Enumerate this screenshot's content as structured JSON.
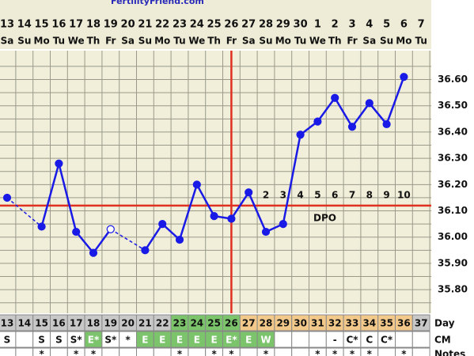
{
  "chart_data": {
    "type": "line",
    "title": "FertilityFriend.com",
    "categories": [
      "13",
      "14",
      "15",
      "16",
      "17",
      "18",
      "19",
      "20",
      "21",
      "22",
      "23",
      "24",
      "25",
      "26",
      "27",
      "28",
      "29",
      "30",
      "1",
      "2",
      "3",
      "4",
      "5",
      "6",
      "7"
    ],
    "weekdays": [
      "Sa",
      "Su",
      "Mo",
      "Tu",
      "We",
      "Th",
      "Fr",
      "Sa",
      "Su",
      "Mo",
      "Tu",
      "We",
      "Th",
      "Fr",
      "Sa",
      "Su",
      "Mo",
      "Tu",
      "We",
      "Th",
      "Fr",
      "Sa",
      "Su",
      "Mo",
      "Tu"
    ],
    "series": [
      {
        "name": "Temperature",
        "color": "#1a1ae6",
        "values": [
          36.15,
          null,
          36.04,
          36.28,
          36.02,
          35.94,
          36.03,
          null,
          35.95,
          36.05,
          35.99,
          36.2,
          36.08,
          36.07,
          36.17,
          36.02,
          36.05,
          36.39,
          36.44,
          36.53,
          36.42,
          36.51,
          36.43,
          36.61,
          null
        ]
      }
    ],
    "open_points": [
      6
    ],
    "ylim": [
      35.71,
      36.71
    ],
    "yticks": [
      {
        "value": 35.8,
        "label": "35.80"
      },
      {
        "value": 35.9,
        "label": "35.90"
      },
      {
        "value": 36.0,
        "label": "36.00"
      },
      {
        "value": 36.1,
        "label": "36.10"
      },
      {
        "value": 36.2,
        "label": "36.20"
      },
      {
        "value": 36.3,
        "label": "36.30"
      },
      {
        "value": 36.4,
        "label": "36.40"
      },
      {
        "value": 36.5,
        "label": "36.50"
      },
      {
        "value": 36.6,
        "label": "36.60"
      }
    ],
    "minor_yticks": [
      35.75,
      35.85,
      35.95,
      36.05,
      36.15,
      36.25,
      36.35,
      36.45,
      36.55,
      36.65
    ],
    "grid": true,
    "coverline": 36.12,
    "coverline_color": "#e03020",
    "ovulation_day": "26",
    "dpo_title": "DPO",
    "dpo": [
      null,
      null,
      null,
      null,
      null,
      null,
      null,
      null,
      null,
      null,
      null,
      null,
      null,
      null,
      null,
      2,
      3,
      4,
      5,
      6,
      7,
      8,
      9,
      10,
      null
    ]
  },
  "table": {
    "day_label": "Day",
    "days": [
      13,
      14,
      15,
      16,
      17,
      18,
      19,
      20,
      21,
      22,
      23,
      24,
      25,
      26,
      27,
      28,
      29,
      30,
      31,
      32,
      33,
      34,
      35,
      36,
      37
    ],
    "day_colors": [
      "#c8c8c8",
      "#c8c8c8",
      "#c8c8c8",
      "#c8c8c8",
      "#c8c8c8",
      "#c8c8c8",
      "#c8c8c8",
      "#c8c8c8",
      "#c8c8c8",
      "#c8c8c8",
      "#7cc46c",
      "#7cc46c",
      "#7cc46c",
      "#7cc46c",
      "#f2c98a",
      "#f2c98a",
      "#f2c98a",
      "#f2c98a",
      "#f2c98a",
      "#f2c98a",
      "#f2c98a",
      "#f2c98a",
      "#f2c98a",
      "#f2c98a",
      "#c8c8c8"
    ],
    "cm_label": "CM",
    "cm": [
      "S",
      null,
      "S",
      "S",
      "S*",
      "E*",
      "S*",
      "*",
      "E",
      "E",
      "E",
      "E",
      "E",
      "E*",
      "E",
      "W",
      null,
      null,
      null,
      "-",
      "C*",
      "C",
      "C*",
      null,
      null
    ],
    "cm_colors": [
      "#fff",
      "#fff",
      "#fff",
      "#fff",
      "#fff",
      "#7cc46c",
      "#fff",
      "#fff",
      "#7cc46c",
      "#7cc46c",
      "#7cc46c",
      "#7cc46c",
      "#7cc46c",
      "#7cc46c",
      "#7cc46c",
      "#7cc46c",
      "#fff",
      "#fff",
      "#fff",
      "#fff",
      "#fff",
      "#fff",
      "#fff",
      "#fff",
      "#fff"
    ],
    "notes_label": "Notes",
    "notes": [
      null,
      null,
      "*",
      null,
      "*",
      "*",
      null,
      null,
      null,
      null,
      "*",
      null,
      "*",
      "*",
      null,
      "*",
      null,
      null,
      "*",
      "*",
      "*",
      "*",
      null,
      "*",
      null
    ]
  }
}
